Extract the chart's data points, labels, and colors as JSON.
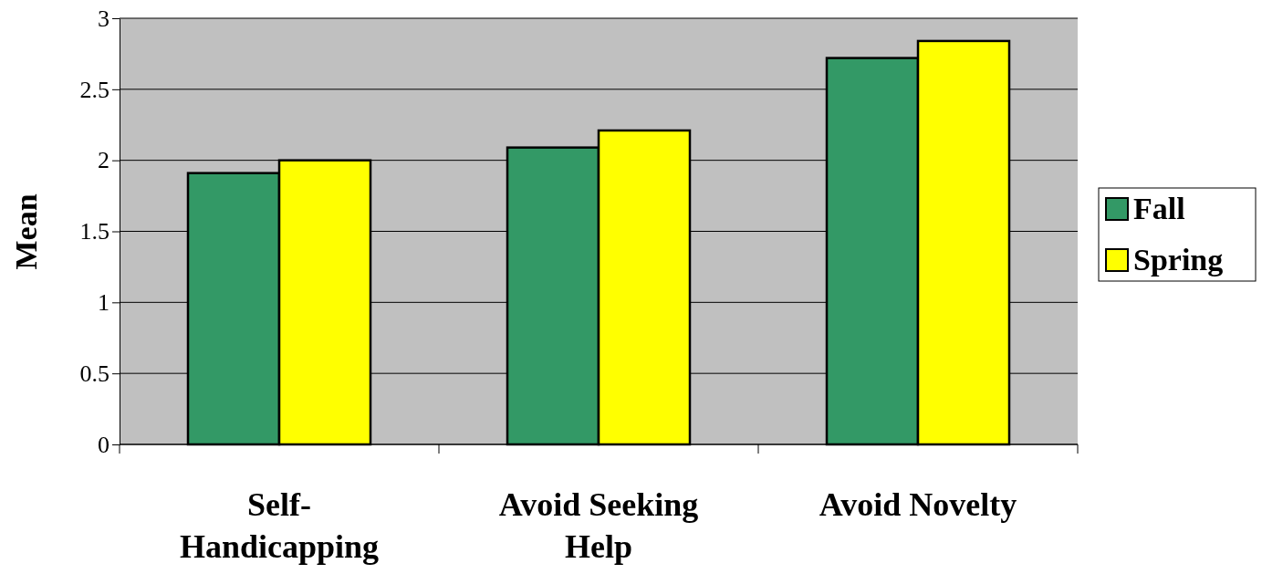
{
  "chart_data": {
    "type": "bar",
    "ylabel": "Mean",
    "categories": [
      "Self-Handicapping",
      "Avoid Seeking Help",
      "Avoid Novelty"
    ],
    "series": [
      {
        "name": "Fall",
        "color": "#339966",
        "values": [
          1.91,
          2.09,
          2.72
        ]
      },
      {
        "name": "Spring",
        "color": "#ffff00",
        "values": [
          2.0,
          2.21,
          2.84
        ]
      }
    ],
    "ylim": [
      0,
      3
    ],
    "yticks": [
      0,
      0.5,
      1,
      1.5,
      2,
      2.5,
      3
    ],
    "grid": "y",
    "legend": "right"
  }
}
